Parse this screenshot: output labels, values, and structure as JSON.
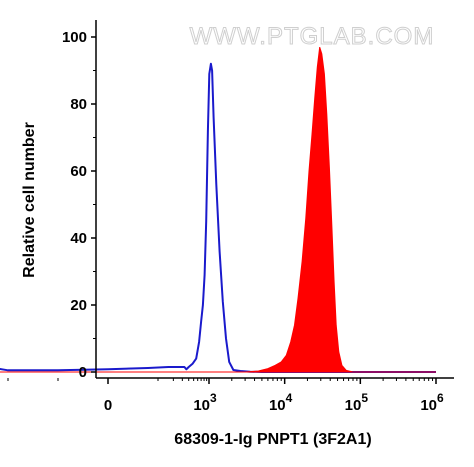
{
  "chart_data": {
    "type": "area",
    "title": "",
    "xlabel": "68309-1-Ig PNPT1 (3F2A1)",
    "ylabel": "Relative cell number",
    "xscale": "biexponential (log decades)",
    "xlim": [
      -300,
      1000000
    ],
    "ylim": [
      0,
      105
    ],
    "x_tick_labels": [
      {
        "label": "0",
        "value": 0
      },
      {
        "label": "10",
        "exp": "3",
        "value": 1000
      },
      {
        "label": "10",
        "exp": "4",
        "value": 10000
      },
      {
        "label": "10",
        "exp": "5",
        "value": 100000
      },
      {
        "label": "10",
        "exp": "6",
        "value": 1000000
      }
    ],
    "y_ticks": [
      0,
      20,
      40,
      60,
      80,
      100
    ],
    "grid": false,
    "legend": "none",
    "watermark": "WWW.PTGLAB.COM",
    "series": [
      {
        "style": "line",
        "color": "#1a1acc",
        "points": [
          [
            -300,
            3
          ],
          [
            -200,
            0.5
          ],
          [
            -100,
            0.5
          ],
          [
            0,
            0.8
          ],
          [
            80,
            1.2
          ],
          [
            160,
            1.5
          ],
          [
            260,
            1.5
          ],
          [
            330,
            1.5
          ],
          [
            360,
            0.8
          ],
          [
            400,
            1.5
          ],
          [
            480,
            2.5
          ],
          [
            560,
            4
          ],
          [
            640,
            9
          ],
          [
            700,
            15
          ],
          [
            760,
            20
          ],
          [
            820,
            29
          ],
          [
            880,
            45
          ],
          [
            950,
            72
          ],
          [
            1010,
            89
          ],
          [
            1060,
            92
          ],
          [
            1100,
            90
          ],
          [
            1150,
            76
          ],
          [
            1250,
            56
          ],
          [
            1380,
            36
          ],
          [
            1520,
            21
          ],
          [
            1680,
            10
          ],
          [
            1850,
            3
          ],
          [
            2100,
            0.6
          ],
          [
            2600,
            0.3
          ],
          [
            3500,
            0.1
          ],
          [
            5000,
            0
          ],
          [
            10000,
            0
          ],
          [
            100000,
            0
          ],
          [
            1000000,
            0
          ]
        ]
      },
      {
        "style": "filled",
        "color": "#ff0000",
        "points": [
          [
            -300,
            0
          ],
          [
            3000,
            0
          ],
          [
            4500,
            0.3
          ],
          [
            6000,
            1
          ],
          [
            7500,
            2
          ],
          [
            9000,
            3
          ],
          [
            10500,
            5
          ],
          [
            12000,
            9
          ],
          [
            13500,
            14
          ],
          [
            15000,
            22
          ],
          [
            17000,
            33
          ],
          [
            19000,
            46
          ],
          [
            21000,
            60
          ],
          [
            23000,
            71
          ],
          [
            25000,
            82
          ],
          [
            27000,
            91
          ],
          [
            29000,
            97
          ],
          [
            31000,
            95
          ],
          [
            33500,
            89
          ],
          [
            36000,
            77
          ],
          [
            39000,
            61
          ],
          [
            42000,
            44
          ],
          [
            45000,
            27
          ],
          [
            48000,
            14
          ],
          [
            52000,
            6
          ],
          [
            57000,
            2
          ],
          [
            65000,
            0.5
          ],
          [
            80000,
            0
          ],
          [
            1000000,
            0
          ]
        ]
      }
    ]
  }
}
